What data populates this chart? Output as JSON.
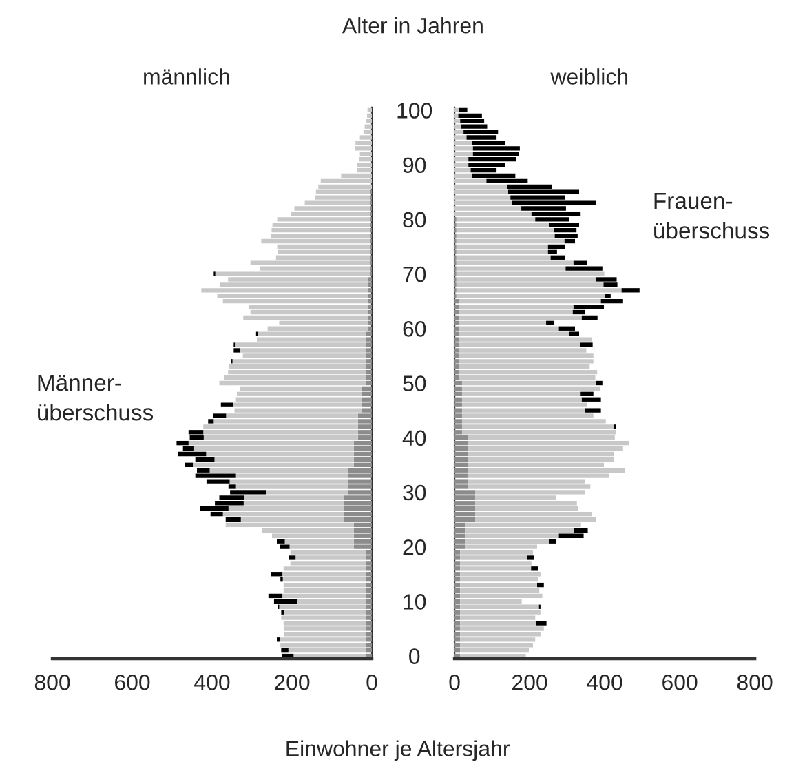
{
  "chart_data": [
    {
      "type": "bar",
      "orientation": "horizontal",
      "stacked": true,
      "title": "männlich",
      "xlabel": "Einwohner je Altersjahr",
      "categories": [
        "100",
        null,
        null,
        null,
        null,
        null,
        null,
        null,
        null,
        null,
        "90",
        null,
        null,
        null,
        null,
        null,
        null,
        null,
        null,
        null,
        "80",
        null,
        null,
        null,
        null,
        null,
        null,
        null,
        null,
        null,
        "70",
        null,
        null,
        null,
        null,
        null,
        null,
        null,
        null,
        null,
        "60",
        null,
        null,
        null,
        null,
        null,
        null,
        null,
        null,
        null,
        "50",
        null,
        null,
        null,
        null,
        null,
        null,
        null,
        null,
        null,
        "40",
        null,
        null,
        null,
        null,
        null,
        null,
        null,
        null,
        null,
        "30",
        null,
        null,
        null,
        null,
        null,
        null,
        null,
        null,
        null,
        "20",
        null,
        null,
        null,
        null,
        null,
        null,
        null,
        null,
        null,
        "10",
        null,
        null,
        null,
        null,
        null,
        null,
        null,
        null,
        null,
        "0"
      ],
      "xlim": [
        800,
        0
      ],
      "xticks": [
        800,
        600,
        400,
        200,
        0
      ],
      "tick_labels": "x",
      "annotations": [
        "Männer-\nüberschuss"
      ],
      "series": [
        {
          "color": "#8c8c8c",
          "values": [
            0,
            0,
            0,
            0,
            0,
            0,
            0,
            0,
            0,
            0,
            0,
            0,
            0,
            0,
            0,
            5,
            5,
            5,
            5,
            5,
            5,
            5,
            5,
            5,
            5,
            5,
            5,
            5,
            5,
            5,
            5,
            10,
            10,
            10,
            10,
            10,
            10,
            10,
            10,
            10,
            10,
            15,
            15,
            15,
            15,
            15,
            15,
            15,
            15,
            15,
            15,
            25,
            25,
            25,
            25,
            25,
            35,
            35,
            35,
            35,
            35,
            45,
            45,
            45,
            45,
            45,
            60,
            60,
            60,
            60,
            60,
            70,
            70,
            70,
            70,
            70,
            45,
            45,
            45,
            45,
            45,
            15,
            15,
            15,
            15,
            15,
            15,
            15,
            15,
            15,
            15,
            15,
            15,
            15,
            15,
            15,
            15,
            15,
            15,
            15,
            15
          ]
        },
        {
          "color": "#c8c8c8",
          "values": [
            11,
            12,
            15,
            18,
            21,
            30,
            41,
            43,
            30,
            31,
            37,
            38,
            77,
            128,
            134,
            135,
            137,
            163,
            189,
            198,
            232,
            244,
            246,
            248,
            272,
            232,
            230,
            235,
            299,
            276,
            387,
            350,
            371,
            417,
            377,
            363,
            297,
            294,
            312,
            222,
            251,
            271,
            273,
            328,
            316,
            308,
            334,
            343,
            345,
            355,
            367,
            305,
            313,
            317,
            322,
            319,
            330,
            361,
            387,
            387,
            386,
            414,
            400,
            370,
            349,
            402,
            346,
            282,
            296,
            282,
            205,
            249,
            251,
            289,
            303,
            258,
            321,
            231,
            205,
            173,
            161,
            189,
            176,
            189,
            206,
            209,
            208,
            206,
            206,
            209,
            172,
            217,
            205,
            212,
            206,
            204,
            204,
            216,
            214,
            194,
            181
          ]
        },
        {
          "color": "#000000",
          "values": [
            0,
            0,
            0,
            0,
            0,
            0,
            0,
            0,
            0,
            0,
            0,
            0,
            0,
            0,
            0,
            0,
            0,
            0,
            0,
            0,
            0,
            0,
            0,
            0,
            0,
            0,
            0,
            0,
            0,
            0,
            4,
            0,
            0,
            0,
            0,
            0,
            0,
            0,
            0,
            0,
            0,
            4,
            0,
            3,
            15,
            0,
            3,
            0,
            0,
            0,
            0,
            0,
            0,
            0,
            31,
            0,
            32,
            14,
            0,
            37,
            35,
            30,
            28,
            71,
            48,
            21,
            32,
            100,
            58,
            17,
            90,
            63,
            72,
            72,
            31,
            38,
            0,
            0,
            0,
            20,
            25,
            0,
            16,
            0,
            0,
            28,
            6,
            0,
            0,
            35,
            58,
            3,
            7,
            0,
            0,
            0,
            0,
            7,
            0,
            18,
            29
          ]
        }
      ]
    },
    {
      "type": "bar",
      "orientation": "horizontal",
      "stacked": true,
      "title": "weiblich",
      "ylabel": "Alter in Jahren",
      "categories": [
        "100",
        null,
        null,
        null,
        null,
        null,
        null,
        null,
        null,
        null,
        "90",
        null,
        null,
        null,
        null,
        null,
        null,
        null,
        null,
        null,
        "80",
        null,
        null,
        null,
        null,
        null,
        null,
        null,
        null,
        null,
        "70",
        null,
        null,
        null,
        null,
        null,
        null,
        null,
        null,
        null,
        "60",
        null,
        null,
        null,
        null,
        null,
        null,
        null,
        null,
        null,
        "50",
        null,
        null,
        null,
        null,
        null,
        null,
        null,
        null,
        null,
        "40",
        null,
        null,
        null,
        null,
        null,
        null,
        null,
        null,
        null,
        "30",
        null,
        null,
        null,
        null,
        null,
        null,
        null,
        null,
        null,
        "20",
        null,
        null,
        null,
        null,
        null,
        null,
        null,
        null,
        null,
        "10",
        null,
        null,
        null,
        null,
        null,
        null,
        null,
        null,
        null,
        "0"
      ],
      "xlim": [
        0,
        800
      ],
      "xticks": [
        0,
        200,
        400,
        600,
        800
      ],
      "annotations": [
        "Frauen-\nüberschuss"
      ],
      "series": [
        {
          "color": "#8c8c8c",
          "values": [
            0,
            0,
            0,
            0,
            0,
            0,
            0,
            0,
            0,
            0,
            0,
            0,
            0,
            0,
            0,
            0,
            0,
            0,
            0,
            0,
            5,
            5,
            5,
            5,
            5,
            5,
            5,
            5,
            5,
            5,
            5,
            5,
            5,
            5,
            5,
            12,
            12,
            12,
            12,
            12,
            12,
            12,
            12,
            12,
            12,
            12,
            12,
            12,
            12,
            12,
            20,
            20,
            20,
            20,
            20,
            20,
            20,
            20,
            20,
            20,
            35,
            35,
            35,
            35,
            35,
            35,
            35,
            35,
            35,
            35,
            55,
            55,
            55,
            55,
            55,
            55,
            30,
            30,
            30,
            30,
            30,
            15,
            15,
            15,
            15,
            15,
            15,
            15,
            15,
            15,
            15,
            15,
            15,
            15,
            15,
            15,
            15,
            15,
            15,
            15,
            15
          ]
        },
        {
          "color": "#c8c8c8",
          "values": [
            12,
            10,
            15,
            18,
            24,
            32,
            46,
            49,
            49,
            37,
            37,
            43,
            46,
            85,
            140,
            143,
            149,
            153,
            178,
            205,
            210,
            247,
            260,
            262,
            288,
            244,
            244,
            251,
            312,
            291,
            394,
            371,
            392,
            440,
            395,
            378,
            305,
            303,
            327,
            232,
            266,
            294,
            354,
            323,
            339,
            358,
            358,
            348,
            368,
            363,
            356,
            367,
            316,
            319,
            334,
            328,
            350,
            383,
            405,
            411,
            392,
            429,
            414,
            390,
            390,
            363,
            418,
            377,
            313,
            327,
            293,
            216,
            271,
            274,
            311,
            321,
            307,
            288,
            248,
            222,
            190,
            194,
            178,
            190,
            189,
            214,
            208,
            205,
            211,
            219,
            164,
            210,
            214,
            200,
            203,
            223,
            214,
            200,
            194,
            183,
            175
          ]
        },
        {
          "color": "#000000",
          "values": [
            22,
            63,
            64,
            69,
            92,
            80,
            88,
            125,
            122,
            128,
            97,
            69,
            116,
            110,
            119,
            189,
            146,
            223,
            119,
            131,
            91,
            80,
            60,
            61,
            28,
            46,
            24,
            39,
            37,
            98,
            0,
            56,
            37,
            48,
            16,
            59,
            81,
            33,
            42,
            22,
            43,
            26,
            0,
            33,
            0,
            0,
            0,
            0,
            0,
            0,
            18,
            0,
            34,
            51,
            0,
            42,
            0,
            0,
            6,
            0,
            0,
            0,
            0,
            0,
            0,
            0,
            0,
            0,
            0,
            0,
            0,
            0,
            0,
            0,
            0,
            0,
            0,
            37,
            66,
            19,
            0,
            0,
            19,
            0,
            19,
            0,
            0,
            18,
            0,
            0,
            0,
            4,
            0,
            0,
            27,
            0,
            0,
            0,
            0,
            0,
            0
          ]
        }
      ]
    }
  ]
}
